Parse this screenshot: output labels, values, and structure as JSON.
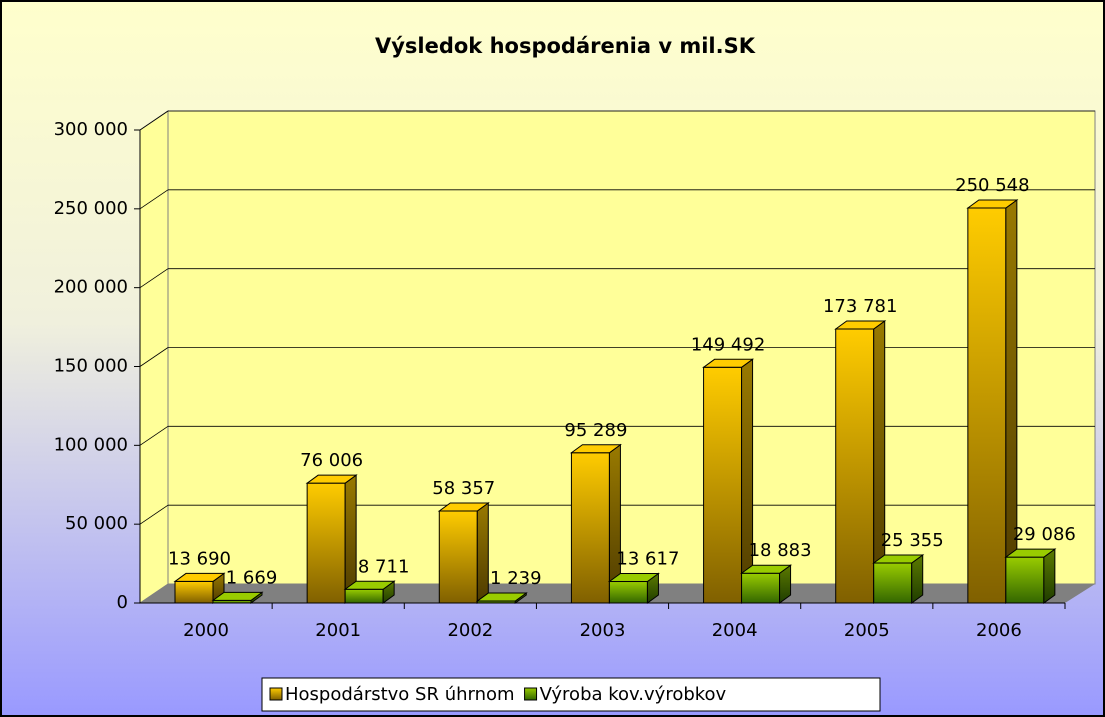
{
  "chart_data": {
    "type": "bar3d",
    "title": "Výsledok hospodárenia v mil.SK",
    "categories": [
      "2000",
      "2001",
      "2002",
      "2003",
      "2004",
      "2005",
      "2006"
    ],
    "series": [
      {
        "name": "Hospodárstvo SR úhrnom",
        "color": "#ffcc00",
        "values": [
          13690,
          76006,
          58357,
          95289,
          149492,
          173781,
          250548
        ],
        "value_labels": [
          "13 690",
          "76 006",
          "58 357",
          "95 289",
          "149 492",
          "173 781",
          "250 548"
        ]
      },
      {
        "name": "Výroba kov.výrobkov",
        "color": "#99cc00",
        "values": [
          1669,
          8711,
          1239,
          13617,
          18883,
          25355,
          29086
        ],
        "value_labels": [
          "1 669",
          "8 711",
          "1 239",
          "13 617",
          "18 883",
          "25 355",
          "29 086"
        ]
      }
    ],
    "ylim": [
      0,
      300000
    ],
    "yticks": [
      0,
      {
        "value": 50000,
        "label": "50 000"
      },
      {
        "value": 100000,
        "label": "100 000"
      },
      {
        "value": 150000,
        "label": "150 000"
      },
      {
        "value": 200000,
        "label": "200 000"
      },
      {
        "value": 250000,
        "label": "250 000"
      },
      {
        "value": 300000,
        "label": "300 000"
      }
    ],
    "grid": true,
    "legend": "bottom"
  }
}
